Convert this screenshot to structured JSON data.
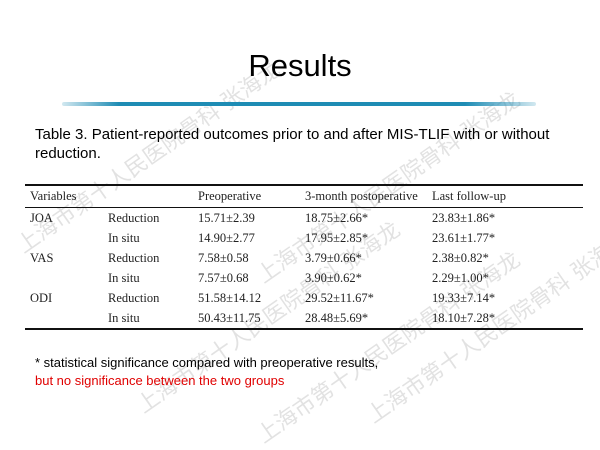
{
  "title": "Results",
  "caption": "Table 3. Patient-reported outcomes prior to and after MIS-TLIF with or without reduction.",
  "table": {
    "headers": [
      "Variables",
      "",
      "Preoperative",
      "3-month postoperative",
      "Last follow-up"
    ],
    "rows": [
      [
        "JOA",
        "Reduction",
        "15.71±2.39",
        "18.75±2.66*",
        "23.83±1.86*"
      ],
      [
        "",
        "In situ",
        "14.90±2.77",
        "17.95±2.85*",
        "23.61±1.77*"
      ],
      [
        "VAS",
        "Reduction",
        "7.58±0.58",
        "3.79±0.66*",
        "2.38±0.82*"
      ],
      [
        "",
        "In situ",
        "7.57±0.68",
        "3.90±0.62*",
        "2.29±1.00*"
      ],
      [
        "ODI",
        "Reduction",
        "51.58±14.12",
        "29.52±11.67*",
        "19.33±7.14*"
      ],
      [
        "",
        "In situ",
        "50.43±11.75",
        "28.48±5.69*",
        "18.10±7.28*"
      ]
    ]
  },
  "footnote": {
    "line1": "* statistical significance compared with preoperative results,",
    "line2": "but no significance between the two groups",
    "line2_color": "#e00000"
  },
  "watermark": "上海市第十人民医院骨科 张海龙",
  "accent_color": "#1e8cb4"
}
